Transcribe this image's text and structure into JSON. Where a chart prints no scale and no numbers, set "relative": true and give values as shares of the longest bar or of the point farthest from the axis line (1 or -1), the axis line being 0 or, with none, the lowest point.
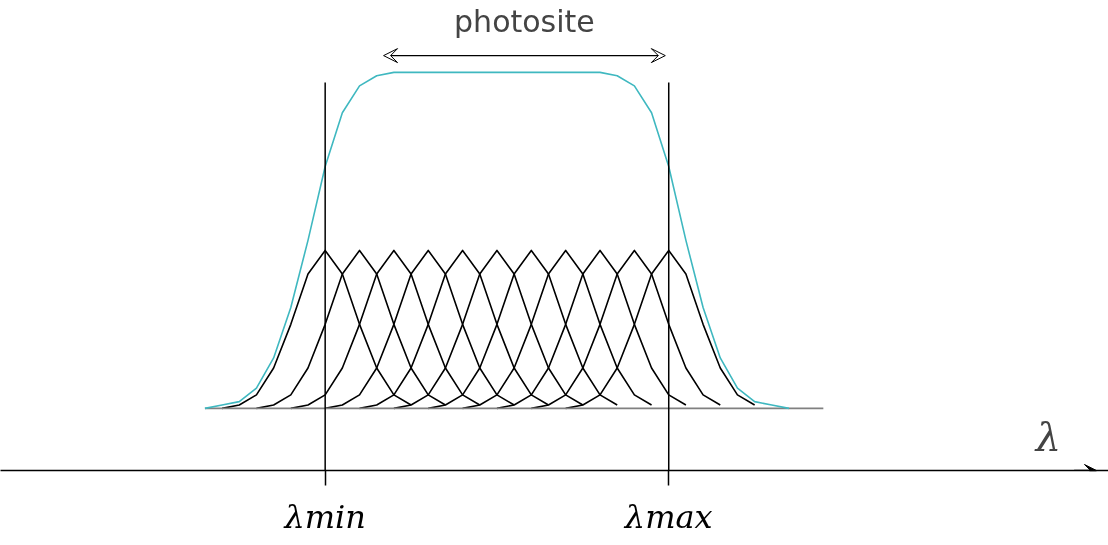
{
  "chart_data": {
    "type": "line",
    "relative": true,
    "annotations": [
      "photosite",
      "λ"
    ],
    "categories": [
      null,
      null,
      null,
      null,
      null,
      null,
      null,
      "λmin",
      null,
      null,
      null,
      null,
      null,
      null,
      null,
      null,
      null,
      null,
      null,
      null,
      null,
      null,
      null,
      null,
      null,
      null,
      null,
      "λmax",
      null,
      null,
      null,
      null,
      null,
      null,
      null,
      null,
      null
    ],
    "ref_lines": [
      {
        "axis": "x",
        "value": "λmin",
        "color": "#000000"
      },
      {
        "axis": "x",
        "value": "λmax",
        "color": "#000000"
      }
    ],
    "series": [
      {
        "color": "#000000",
        "values": [
          null,
          0,
          0.01,
          0.04,
          0.12,
          0.25,
          0.4,
          0.47,
          0.4,
          0.25,
          0.12,
          0.04,
          0.01,
          null,
          null,
          null,
          null,
          null,
          null,
          null,
          null,
          null,
          null,
          null,
          null,
          null,
          null,
          null,
          null,
          null,
          null,
          null,
          null,
          null,
          null,
          null,
          null
        ]
      },
      {
        "color": "#000000",
        "values": [
          null,
          null,
          null,
          0,
          0.01,
          0.04,
          0.12,
          0.25,
          0.4,
          0.47,
          0.4,
          0.25,
          0.12,
          0.04,
          0.01,
          null,
          null,
          null,
          null,
          null,
          null,
          null,
          null,
          null,
          null,
          null,
          null,
          null,
          null,
          null,
          null,
          null,
          null,
          null,
          null,
          null,
          null
        ]
      },
      {
        "color": "#000000",
        "values": [
          null,
          null,
          null,
          null,
          null,
          0,
          0.01,
          0.04,
          0.12,
          0.25,
          0.4,
          0.47,
          0.4,
          0.25,
          0.12,
          0.04,
          0.01,
          null,
          null,
          null,
          null,
          null,
          null,
          null,
          null,
          null,
          null,
          null,
          null,
          null,
          null,
          null,
          null,
          null,
          null,
          null,
          null
        ]
      },
      {
        "color": "#000000",
        "values": [
          null,
          null,
          null,
          null,
          null,
          null,
          null,
          0,
          0.01,
          0.04,
          0.12,
          0.25,
          0.4,
          0.47,
          0.4,
          0.25,
          0.12,
          0.04,
          0.01,
          null,
          null,
          null,
          null,
          null,
          null,
          null,
          null,
          null,
          null,
          null,
          null,
          null,
          null,
          null,
          null,
          null,
          null
        ]
      },
      {
        "color": "#000000",
        "values": [
          null,
          null,
          null,
          null,
          null,
          null,
          null,
          null,
          null,
          0,
          0.01,
          0.04,
          0.12,
          0.25,
          0.4,
          0.47,
          0.4,
          0.25,
          0.12,
          0.04,
          0.01,
          null,
          null,
          null,
          null,
          null,
          null,
          null,
          null,
          null,
          null,
          null,
          null,
          null,
          null,
          null,
          null
        ]
      },
      {
        "color": "#000000",
        "values": [
          null,
          null,
          null,
          null,
          null,
          null,
          null,
          null,
          null,
          null,
          null,
          0,
          0.01,
          0.04,
          0.12,
          0.25,
          0.4,
          0.47,
          0.4,
          0.25,
          0.12,
          0.04,
          0.01,
          null,
          null,
          null,
          null,
          null,
          null,
          null,
          null,
          null,
          null,
          null,
          null,
          null,
          null
        ]
      },
      {
        "color": "#000000",
        "values": [
          null,
          null,
          null,
          null,
          null,
          null,
          null,
          null,
          null,
          null,
          null,
          null,
          null,
          0,
          0.01,
          0.04,
          0.12,
          0.25,
          0.4,
          0.47,
          0.4,
          0.25,
          0.12,
          0.04,
          0.01,
          null,
          null,
          null,
          null,
          null,
          null,
          null,
          null,
          null,
          null,
          null,
          null
        ]
      },
      {
        "color": "#000000",
        "values": [
          null,
          null,
          null,
          null,
          null,
          null,
          null,
          null,
          null,
          null,
          null,
          null,
          null,
          null,
          null,
          0,
          0.01,
          0.04,
          0.12,
          0.25,
          0.4,
          0.47,
          0.4,
          0.25,
          0.12,
          0.04,
          0.01,
          null,
          null,
          null,
          null,
          null,
          null,
          null,
          null,
          null,
          null
        ]
      },
      {
        "color": "#000000",
        "values": [
          null,
          null,
          null,
          null,
          null,
          null,
          null,
          null,
          null,
          null,
          null,
          null,
          null,
          null,
          null,
          null,
          null,
          0,
          0.01,
          0.04,
          0.12,
          0.25,
          0.4,
          0.47,
          0.4,
          0.25,
          0.12,
          0.04,
          0.01,
          null,
          null,
          null,
          null,
          null,
          null,
          null,
          null
        ]
      },
      {
        "color": "#000000",
        "values": [
          null,
          null,
          null,
          null,
          null,
          null,
          null,
          null,
          null,
          null,
          null,
          null,
          null,
          null,
          null,
          null,
          null,
          null,
          null,
          0,
          0.01,
          0.04,
          0.12,
          0.25,
          0.4,
          0.47,
          0.4,
          0.25,
          0.12,
          0.04,
          0.01,
          null,
          null,
          null,
          null,
          null,
          null
        ]
      },
      {
        "color": "#000000",
        "values": [
          null,
          null,
          null,
          null,
          null,
          null,
          null,
          null,
          null,
          null,
          null,
          null,
          null,
          null,
          null,
          null,
          null,
          null,
          null,
          null,
          null,
          0,
          0.01,
          0.04,
          0.12,
          0.25,
          0.4,
          0.47,
          0.4,
          0.25,
          0.12,
          0.04,
          0.01,
          null,
          null,
          null,
          null
        ]
      },
      {
        "color": "#808080",
        "values": [
          0,
          0,
          0,
          0,
          0,
          0,
          0,
          0,
          0,
          0,
          0,
          0,
          0,
          0,
          0,
          0,
          0,
          0,
          0,
          0,
          0,
          0,
          0,
          0,
          0,
          0,
          0,
          0,
          0,
          0,
          0,
          0,
          0,
          0,
          0,
          0,
          0
        ]
      },
      {
        "color": "#3fb8c0",
        "values": [
          0,
          0.01,
          0.02,
          0.06,
          0.15,
          0.3,
          0.5,
          0.72,
          0.88,
          0.96,
          0.99,
          1,
          1,
          1,
          1,
          1,
          1,
          1,
          1,
          1,
          1,
          1,
          1,
          1,
          0.99,
          0.96,
          0.88,
          0.72,
          0.5,
          0.3,
          0.15,
          0.06,
          0.02,
          0.01,
          0,
          null,
          null
        ]
      }
    ]
  }
}
